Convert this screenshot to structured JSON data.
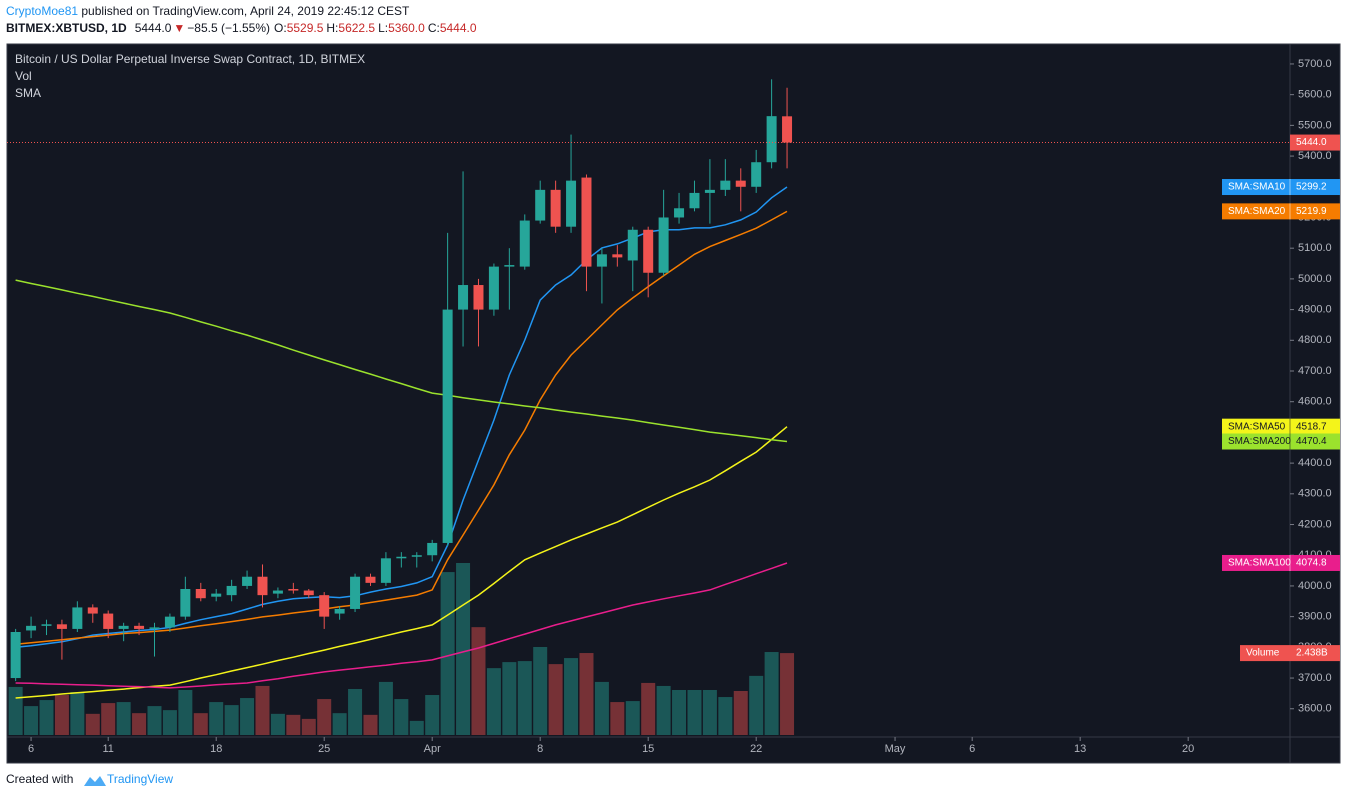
{
  "header": {
    "user": "CryptoMoe81",
    "published": " published on TradingView.com, April 24, 2019 22:45:12 CEST",
    "symbol": "BITMEX:XBTUSD, 1D",
    "last": "5444.0",
    "arrow": "▼",
    "change": "−85.5 (−1.55%)",
    "ohlc": [
      [
        "O:",
        "5529.5"
      ],
      [
        "H:",
        "5622.5"
      ],
      [
        "L:",
        "5360.0"
      ],
      [
        "C:",
        "5444.0"
      ]
    ]
  },
  "footer": {
    "created": "Created with",
    "brand": "TradingView"
  },
  "chart_data": {
    "type": "candlestick",
    "title": "Bitcoin / US Dollar Perpetual Inverse Swap Contract, 1D, BITMEX",
    "legend": [
      "Vol",
      "SMA"
    ],
    "up_color": "#26a69a",
    "down_color": "#ef5350",
    "x": [
      0,
      1,
      2,
      3,
      4,
      5,
      6,
      7,
      8,
      9,
      10,
      11,
      12,
      13,
      14,
      15,
      16,
      17,
      18,
      19,
      20,
      21,
      22,
      23,
      24,
      25,
      26,
      27,
      28,
      29,
      30,
      31,
      32,
      33,
      34,
      35,
      36,
      37,
      38,
      39,
      40,
      41,
      42,
      43,
      44,
      45,
      46,
      47,
      48,
      49,
      50
    ],
    "xlim": [
      -0.56,
      82.6
    ],
    "xticks": [
      {
        "value": 1,
        "label": "6"
      },
      {
        "value": 6,
        "label": "11"
      },
      {
        "value": 13,
        "label": "18"
      },
      {
        "value": 20,
        "label": "25"
      },
      {
        "value": 27,
        "label": "Apr"
      },
      {
        "value": 34,
        "label": "8"
      },
      {
        "value": 41,
        "label": "15"
      },
      {
        "value": 48,
        "label": "22"
      },
      {
        "value": 57,
        "label": "May"
      },
      {
        "value": 62,
        "label": "6"
      },
      {
        "value": 69,
        "label": "13"
      },
      {
        "value": 76,
        "label": "20"
      }
    ],
    "ylim": [
      3508,
      5765
    ],
    "yticks": [
      {
        "value": 3600,
        "label": "3600.0"
      },
      {
        "value": 3700,
        "label": "3700.0"
      },
      {
        "value": 3800,
        "label": "3800.0"
      },
      {
        "value": 3900,
        "label": "3900.0"
      },
      {
        "value": 4000,
        "label": "4000.0"
      },
      {
        "value": 4100,
        "label": "4100.0"
      },
      {
        "value": 4200,
        "label": "4200.0"
      },
      {
        "value": 4300,
        "label": "4300.0"
      },
      {
        "value": 4400,
        "label": "4400.0"
      },
      {
        "value": 4500,
        "label": "4500.0"
      },
      {
        "value": 4600,
        "label": "4600.0"
      },
      {
        "value": 4700,
        "label": "4700.0"
      },
      {
        "value": 4800,
        "label": "4800.0"
      },
      {
        "value": 4900,
        "label": "4900.0"
      },
      {
        "value": 5000,
        "label": "5000.0"
      },
      {
        "value": 5100,
        "label": "5100.0"
      },
      {
        "value": 5200,
        "label": "5200.0"
      },
      {
        "value": 5300,
        "label": "5300.0"
      },
      {
        "value": 5400,
        "label": "5400.0"
      },
      {
        "value": 5500,
        "label": "5500.0"
      },
      {
        "value": 5600,
        "label": "5600.0"
      },
      {
        "value": 5700,
        "label": "5700.0"
      }
    ],
    "ohlc": {
      "open": [
        3700,
        3855,
        3870,
        3875,
        3860,
        3930,
        3910,
        3860,
        3870,
        3860,
        3865,
        3900,
        3990,
        3965,
        3970,
        4000,
        4030,
        3975,
        3990,
        3985,
        3970,
        3910,
        3925,
        4030,
        4010,
        4090,
        4095,
        4100,
        4140,
        4900,
        4980,
        4900,
        5040,
        5040,
        5190,
        5290,
        5170,
        5330,
        5040,
        5080,
        5060,
        5160,
        5020,
        5200,
        5230,
        5280,
        5290,
        5320,
        5300,
        5380,
        5529.5
      ],
      "high": [
        3860,
        3900,
        3890,
        3890,
        3950,
        3940,
        3920,
        3880,
        3880,
        3880,
        3910,
        4030,
        4010,
        3990,
        4020,
        4050,
        4070,
        3995,
        4010,
        3990,
        3980,
        3935,
        4040,
        4040,
        4110,
        4110,
        4110,
        4150,
        5150,
        5350,
        5000,
        5050,
        5100,
        5210,
        5320,
        5320,
        5470,
        5340,
        5100,
        5110,
        5170,
        5170,
        5290,
        5280,
        5320,
        5390,
        5390,
        5360,
        5420,
        5650,
        5622.5
      ],
      "low": [
        3690,
        3830,
        3840,
        3760,
        3850,
        3880,
        3830,
        3820,
        3840,
        3770,
        3850,
        3890,
        3950,
        3950,
        3950,
        3990,
        3930,
        3960,
        3975,
        3960,
        3860,
        3890,
        3915,
        4000,
        4000,
        4060,
        4060,
        4080,
        4130,
        4780,
        4780,
        4880,
        4900,
        5030,
        5180,
        5150,
        5150,
        4960,
        4920,
        5040,
        4960,
        4940,
        5010,
        5180,
        5220,
        5180,
        5270,
        5220,
        5280,
        5360,
        5360
      ],
      "close": [
        3850,
        3870,
        3875,
        3860,
        3930,
        3910,
        3860,
        3870,
        3860,
        3865,
        3900,
        3990,
        3960,
        3975,
        4000,
        4030,
        3970,
        3985,
        3985,
        3970,
        3900,
        3925,
        4030,
        4010,
        4090,
        4095,
        4100,
        4140,
        4900,
        4980,
        4900,
        5040,
        5045,
        5190,
        5290,
        5170,
        5320,
        5040,
        5080,
        5070,
        5160,
        5020,
        5200,
        5230,
        5280,
        5290,
        5320,
        5300,
        5380,
        5530,
        5444
      ]
    },
    "volume": {
      "name": "Volume",
      "values": [
        1.43,
        0.86,
        1.04,
        1.19,
        1.28,
        0.63,
        0.95,
        0.98,
        0.65,
        0.86,
        0.74,
        1.34,
        0.65,
        0.98,
        0.89,
        1.1,
        1.46,
        0.63,
        0.6,
        0.48,
        1.07,
        0.65,
        1.37,
        0.6,
        1.58,
        1.07,
        0.42,
        1.19,
        4.85,
        5.12,
        3.21,
        1.99,
        2.17,
        2.2,
        2.62,
        2.11,
        2.29,
        2.44,
        1.58,
        0.98,
        1.01,
        1.55,
        1.46,
        1.34,
        1.34,
        1.34,
        1.13,
        1.31,
        1.76,
        2.47,
        2.438
      ],
      "last_label": "2.438B"
    },
    "sma": [
      {
        "name": "SMA:SMA10",
        "color": "#2196f3",
        "text_color": "#ffffff",
        "values": [
          3800,
          3805,
          3812,
          3818,
          3828,
          3840,
          3845,
          3850,
          3855,
          3858,
          3865,
          3878,
          3890,
          3900,
          3910,
          3925,
          3940,
          3950,
          3958,
          3962,
          3965,
          3962,
          3968,
          3980,
          3990,
          3998,
          4010,
          4030,
          4133,
          4280,
          4410,
          4540,
          4687,
          4801,
          4931,
          4980,
          5013,
          5062,
          5101,
          5114,
          5133,
          5153,
          5160,
          5160,
          5166,
          5166,
          5176,
          5192,
          5218,
          5264,
          5299.2
        ]
      },
      {
        "name": "SMA:SMA20",
        "color": "#f57c00",
        "text_color": "#ffffff",
        "values": [
          3810,
          3815,
          3820,
          3825,
          3830,
          3835,
          3840,
          3845,
          3848,
          3852,
          3856,
          3863,
          3870,
          3877,
          3884,
          3891,
          3899,
          3905,
          3912,
          3918,
          3925,
          3932,
          3938,
          3946,
          3954,
          3962,
          3970,
          3987,
          4085,
          4166,
          4247,
          4329,
          4427,
          4508,
          4606,
          4687,
          4752,
          4801,
          4850,
          4899,
          4938,
          4975,
          5010,
          5045,
          5080,
          5105,
          5125,
          5145,
          5165,
          5192,
          5219.9
        ]
      },
      {
        "name": "SMA:SMA50",
        "color": "#f4f41a",
        "text_color": "#131722",
        "values": [
          3635,
          3639,
          3643,
          3648,
          3652,
          3656,
          3660,
          3664,
          3669,
          3673,
          3677,
          3688,
          3700,
          3711,
          3723,
          3734,
          3745,
          3757,
          3768,
          3780,
          3791,
          3803,
          3814,
          3826,
          3838,
          3850,
          3861,
          3873,
          3905,
          3938,
          3970,
          4008,
          4047,
          4085,
          4107,
          4128,
          4150,
          4169,
          4189,
          4208,
          4232,
          4256,
          4280,
          4302,
          4323,
          4345,
          4375,
          4406,
          4436,
          4477,
          4518.7
        ]
      },
      {
        "name": "SMA:SMA100",
        "color": "#e91e8c",
        "text_color": "#ffffff",
        "values": [
          3684,
          3683,
          3681,
          3680,
          3678,
          3677,
          3675,
          3673,
          3672,
          3670,
          3668,
          3671,
          3674,
          3678,
          3681,
          3684,
          3691,
          3698,
          3706,
          3713,
          3720,
          3726,
          3731,
          3737,
          3742,
          3748,
          3753,
          3759,
          3772,
          3785,
          3798,
          3813,
          3828,
          3843,
          3858,
          3873,
          3886,
          3899,
          3912,
          3925,
          3938,
          3948,
          3958,
          3968,
          3977,
          3987,
          4005,
          4022,
          4040,
          4057,
          4074.8
        ]
      },
      {
        "name": "SMA:SMA200",
        "color": "#9be22d",
        "text_color": "#131722",
        "values": [
          4996,
          4985,
          4975,
          4964,
          4953,
          4943,
          4932,
          4921,
          4910,
          4900,
          4889,
          4875,
          4860,
          4846,
          4831,
          4817,
          4801,
          4785,
          4768,
          4752,
          4736,
          4721,
          4705,
          4690,
          4674,
          4659,
          4643,
          4628,
          4621,
          4613,
          4606,
          4599,
          4593,
          4586,
          4580,
          4573,
          4566,
          4560,
          4553,
          4547,
          4540,
          4532,
          4524,
          4517,
          4509,
          4501,
          4495,
          4489,
          4483,
          4476,
          4470.4
        ]
      }
    ]
  }
}
